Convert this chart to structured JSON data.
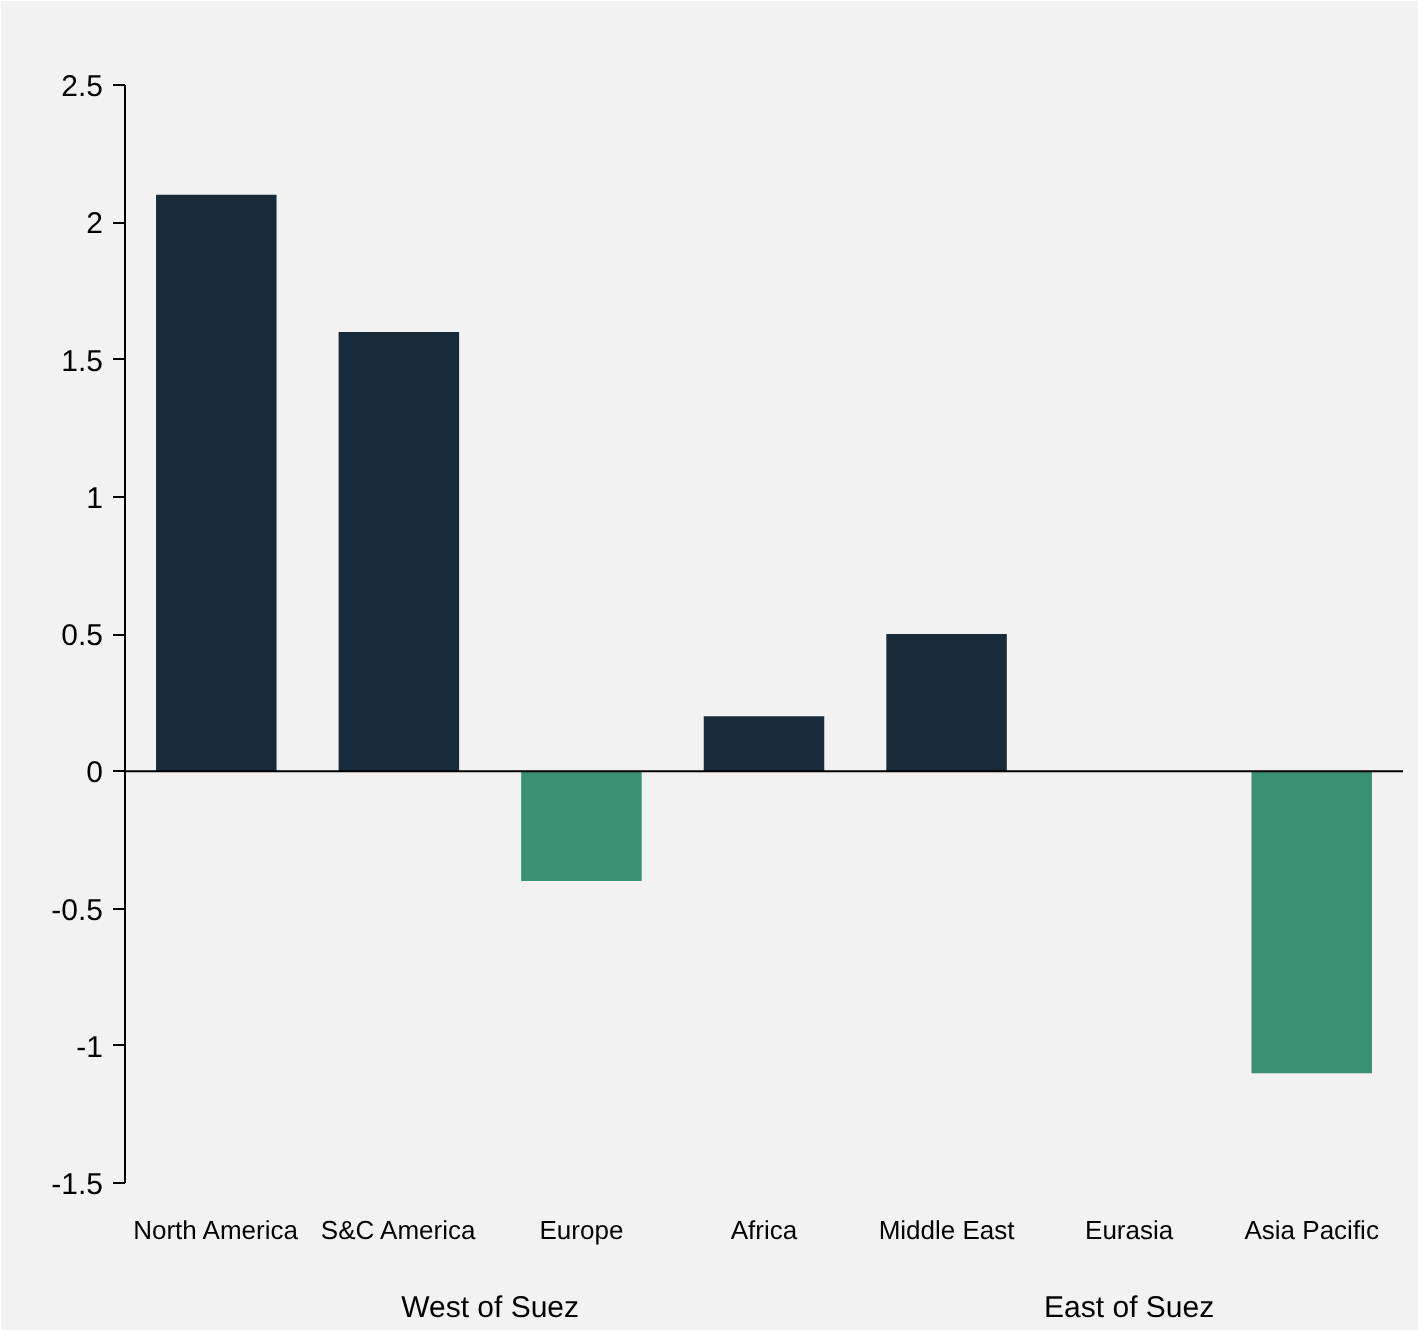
{
  "chart_data": {
    "type": "bar",
    "categories": [
      "North America",
      "S&C America",
      "Europe",
      "Africa",
      "Middle East",
      "Eurasia",
      "Asia Pacific"
    ],
    "values": [
      2.1,
      1.6,
      -0.4,
      0.2,
      0.5,
      0,
      -1.1
    ],
    "colors": [
      "#172b3a",
      "#172b3a",
      "#3a9073",
      "#172b3a",
      "#172b3a",
      "#172b3a",
      "#3a9073"
    ],
    "ylim": [
      -1.5,
      2.5
    ],
    "yticks": [
      -1.5,
      -1,
      -0.5,
      0,
      0.5,
      1,
      1.5,
      2,
      2.5
    ],
    "annotations": [
      "West of Suez",
      "East of Suez"
    ],
    "ref_lines": [
      {
        "axis": "y",
        "value": 0,
        "color": "#000000"
      }
    ],
    "grid": false
  }
}
